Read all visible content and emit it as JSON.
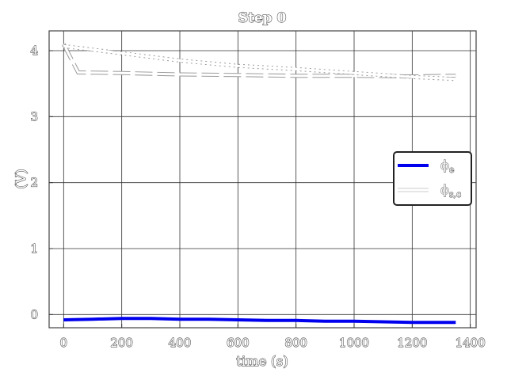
{
  "chart_data": {
    "type": "line",
    "title": "Step 0",
    "xlabel": "time (s)",
    "ylabel": "(V)",
    "xlim": [
      -50,
      1420
    ],
    "ylim": [
      -0.2,
      4.3
    ],
    "xticks": [
      0,
      200,
      400,
      600,
      800,
      1000,
      1200,
      1400
    ],
    "xtick_labels": [
      "0",
      "200",
      "400",
      "600",
      "800",
      "1000",
      "1200",
      "1400"
    ],
    "yticks": [
      0,
      1,
      2,
      3,
      4
    ],
    "ytick_labels": [
      "0",
      "1",
      "2",
      "3",
      "4"
    ],
    "grid": true,
    "legend_position": "right",
    "series": [
      {
        "name": "ϕe",
        "legend_label_main": "ϕ",
        "legend_label_sub": "e",
        "color": "#0000ee",
        "style": "solid",
        "x": [
          0,
          100,
          200,
          300,
          400,
          500,
          600,
          700,
          800,
          900,
          1000,
          1100,
          1200,
          1350
        ],
        "y": [
          -0.08,
          -0.07,
          -0.06,
          -0.06,
          -0.07,
          -0.07,
          -0.08,
          -0.09,
          -0.09,
          -0.1,
          -0.1,
          -0.11,
          -0.12,
          -0.12
        ]
      },
      {
        "name": "ϕs,c",
        "legend_label_main": "ϕ",
        "legend_label_sub": "s,c",
        "color": "#ffffff",
        "style": "solid",
        "x": [
          0,
          50,
          200,
          400,
          600,
          800,
          1000,
          1200,
          1350
        ],
        "y": [
          4.1,
          3.67,
          3.66,
          3.64,
          3.63,
          3.62,
          3.62,
          3.61,
          3.62
        ]
      },
      {
        "name": "",
        "color": "#ffffff",
        "style": "dotted",
        "x": [
          0,
          200,
          400,
          600,
          800,
          1000,
          1200,
          1350
        ],
        "y": [
          4.07,
          3.96,
          3.85,
          3.77,
          3.72,
          3.66,
          3.6,
          3.57
        ]
      }
    ]
  }
}
